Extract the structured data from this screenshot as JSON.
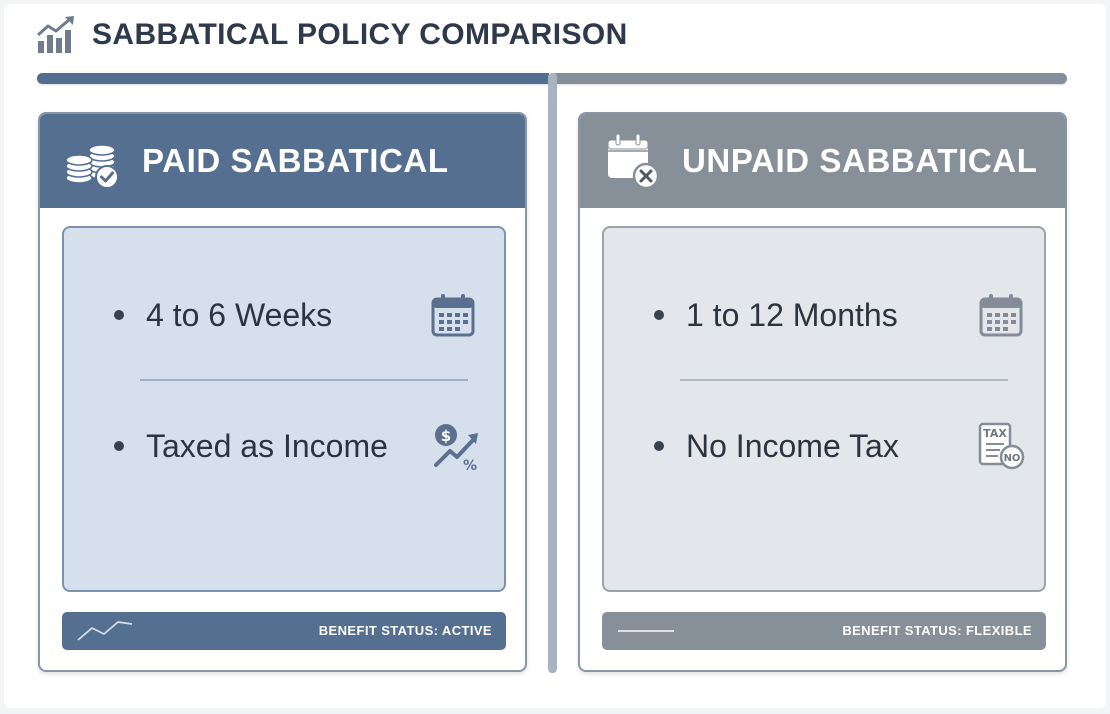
{
  "page": {
    "title": "SABBATICAL POLICY COMPARISON",
    "logo_icon": "trending-chart-icon"
  },
  "colors": {
    "paid_accent": "#556f91",
    "unpaid_accent": "#879099",
    "paid_inner": "#d6e0ed",
    "unpaid_inner": "#e3e6ea"
  },
  "paid": {
    "title": "PAID SABBATICAL",
    "header_icon": "coins-check-icon",
    "items": [
      {
        "text": "4 to 6 Weeks",
        "icon": "calendar-icon"
      },
      {
        "text": "Taxed as Income",
        "icon": "dollar-tax-percent-icon"
      }
    ],
    "status": "BENEFIT STATUS: ACTIVE",
    "status_icon": "trend-line-icon"
  },
  "unpaid": {
    "title": "UNPAID SABBATICAL",
    "header_icon": "calendar-cancel-icon",
    "items": [
      {
        "text": "1 to 12 Months",
        "icon": "calendar-icon"
      },
      {
        "text": "No Income Tax",
        "icon": "tax-document-no-icon"
      }
    ],
    "status": "BENEFIT STATUS: FLEXIBLE",
    "status_icon": "flat-line-icon",
    "tax_icon_labels": [
      "TAX",
      "NO"
    ]
  }
}
